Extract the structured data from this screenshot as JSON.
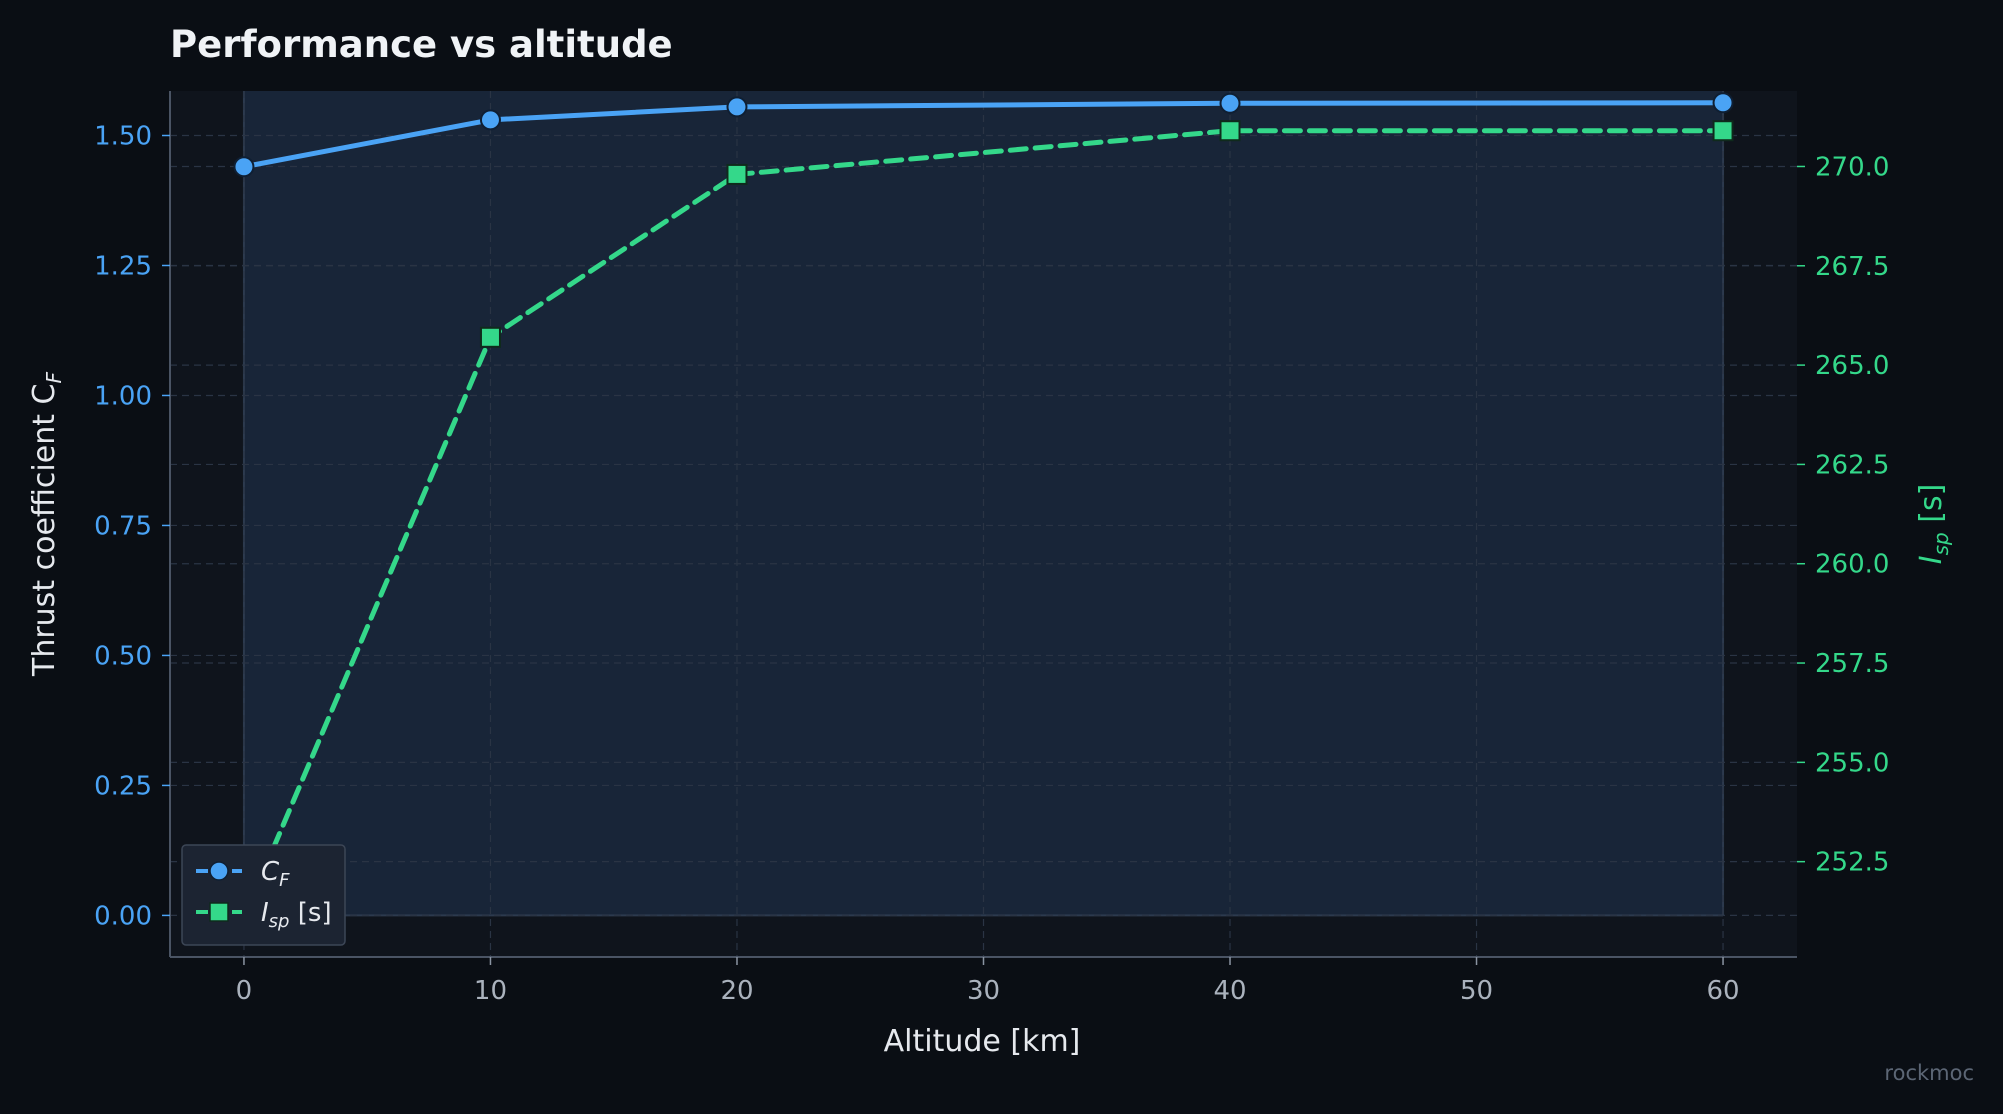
{
  "chart_data": {
    "type": "line",
    "title": "Performance vs altitude",
    "xlabel": "Altitude [km]",
    "ylabel_left": "Thrust coefficient  C",
    "ylabel_left_sub": "F",
    "ylabel_right": "I",
    "ylabel_right_sub": "sp",
    "ylabel_right_suffix": " [s]",
    "x": [
      0,
      10,
      20,
      40,
      60
    ],
    "xlim": [
      -3,
      63
    ],
    "xticks": [
      0,
      10,
      20,
      30,
      40,
      50,
      60
    ],
    "ylim_left": [
      -0.08,
      1.5856
    ],
    "yticks_left": [
      "0.00",
      "0.25",
      "0.50",
      "0.75",
      "1.00",
      "1.25",
      "1.50"
    ],
    "ylim_right": [
      250.1,
      271.9
    ],
    "yticks_right": [
      "252.5",
      "255.0",
      "257.5",
      "260.0",
      "262.5",
      "265.0",
      "267.5",
      "270.0"
    ],
    "grid": true,
    "series": [
      {
        "name": "C",
        "name_sub": "F",
        "name_suffix": "",
        "axis": "left",
        "marker": "circle",
        "style": "solid",
        "color": "#4aa3f5",
        "values": [
          1.44,
          1.53,
          1.555,
          1.562,
          1.563
        ]
      },
      {
        "name": "I",
        "name_sub": "sp",
        "name_suffix": " [s]",
        "axis": "right",
        "marker": "square",
        "style": "dashed",
        "color": "#34d88a",
        "values": [
          251.1,
          265.7,
          269.8,
          270.9,
          270.9
        ]
      }
    ],
    "legend_position": "lower left",
    "credit": "rockmoc"
  }
}
